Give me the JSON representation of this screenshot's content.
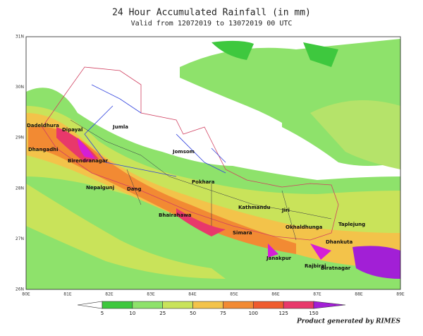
{
  "header": {
    "title": "24 Hour Accumulated  Rainfall (in mm)",
    "subtitle": "Valid from 12072019 to 13072019 00 UTC"
  },
  "lat_labels": [
    "31N",
    "30N",
    "29N",
    "28N",
    "27N",
    "26N"
  ],
  "lon_labels": [
    "80E",
    "81E",
    "82E",
    "83E",
    "84E",
    "85E",
    "86E",
    "87E",
    "88E",
    "89E"
  ],
  "places": [
    "Dadeldhura",
    "Dipayal",
    "Dhangadhi",
    "Birendranagar",
    "Jumla",
    "Jomsom",
    "Nepalgunj",
    "Dang",
    "Pokhara",
    "Bhairahawa",
    "Kathmandu",
    "Jiri",
    "Okhaldhunga",
    "Taplejung",
    "Simara",
    "Dhankuta",
    "Janakpur",
    "Rajbiraj",
    "Biratnagar"
  ],
  "legend": {
    "levels": [
      "5",
      "10",
      "25",
      "50",
      "75",
      "100",
      "125",
      "150"
    ]
  },
  "footer": "Product generated by RIMES"
}
